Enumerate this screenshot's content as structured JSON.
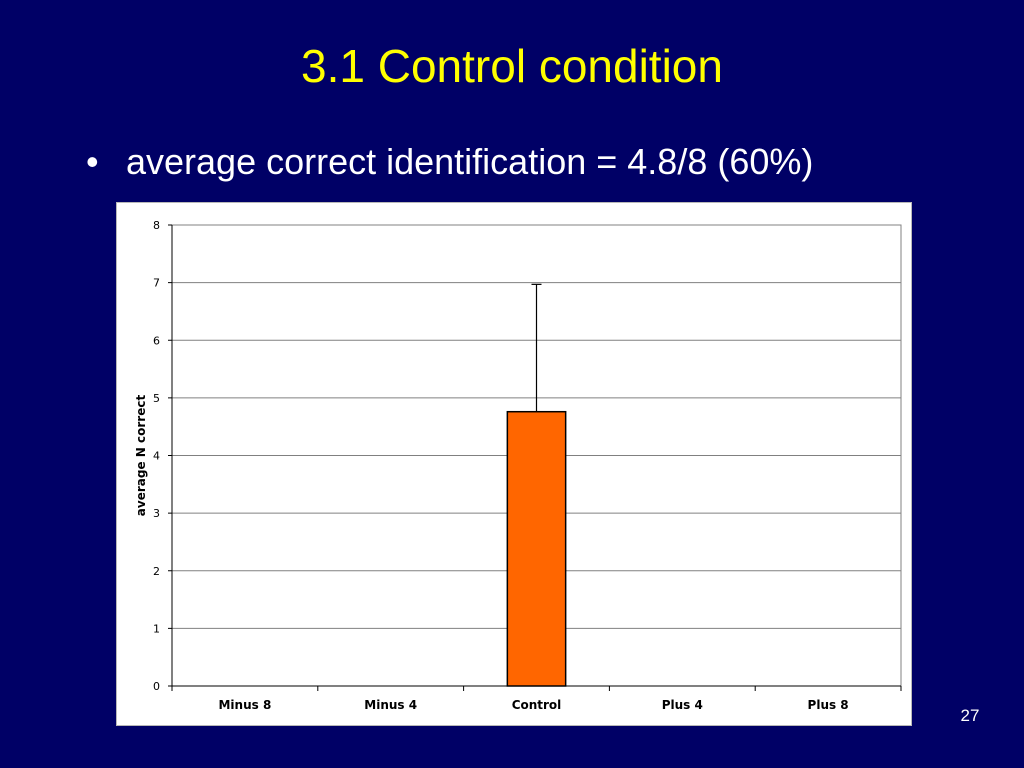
{
  "slide": {
    "title": "3.1 Control condition",
    "bullet_marker": "•",
    "bullet_text": "average correct identification = 4.8/8 (60%)",
    "page_number": "27"
  },
  "colors": {
    "background": "#000066",
    "title": "#ffff00",
    "text": "#ffffff",
    "bar_fill": "#ff6600",
    "bar_stroke": "#000000"
  },
  "chart_data": {
    "type": "bar",
    "categories": [
      "Minus 8",
      "Minus 4",
      "Control",
      "Plus 4",
      "Plus 8"
    ],
    "values": [
      null,
      null,
      4.76,
      null,
      null
    ],
    "error_upper": [
      null,
      null,
      6.97,
      null,
      null
    ],
    "title": "",
    "xlabel": "",
    "ylabel": "average N correct",
    "ylim": [
      0,
      8
    ],
    "yticks": [
      0,
      1,
      2,
      3,
      4,
      5,
      6,
      7,
      8
    ],
    "grid": true,
    "legend": "none"
  }
}
